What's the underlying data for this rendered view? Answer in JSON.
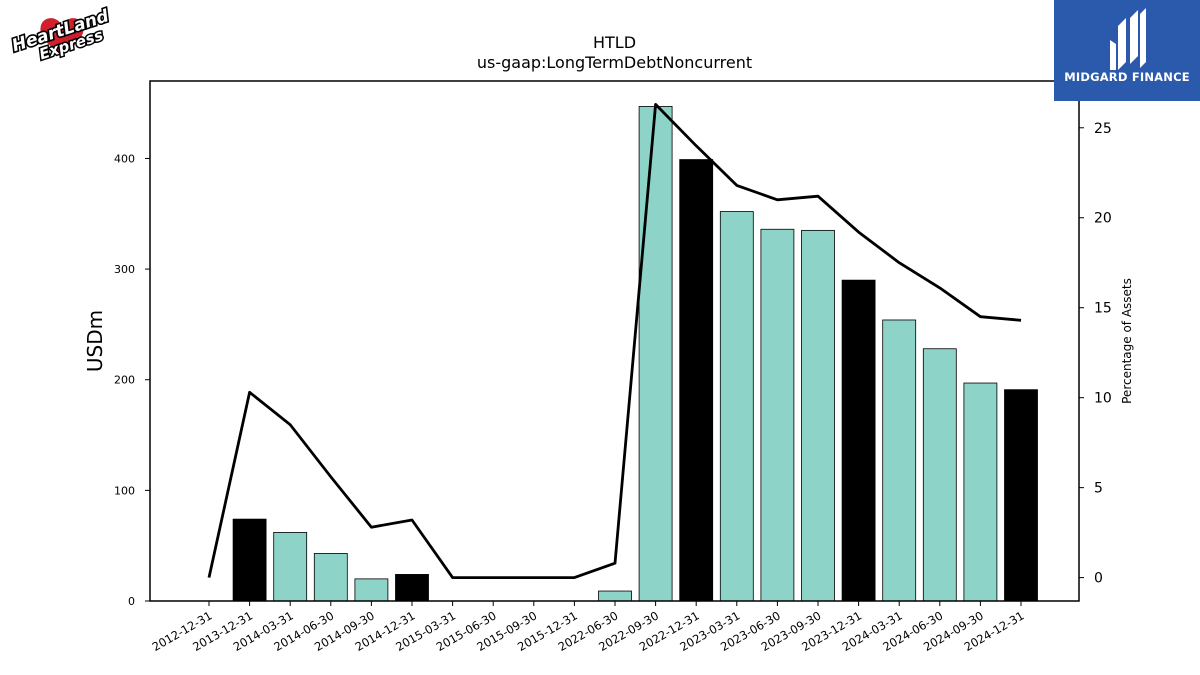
{
  "logos": {
    "left_text_1": "HeartLand",
    "left_text_2": "Express",
    "right_text": "MIDGARD FINANCE"
  },
  "colors": {
    "bar_regular": "#8dd3c7",
    "bar_year_end": "#000000",
    "line": "#000000",
    "logo_right_bg": "#2b59ab",
    "logo_left_heart": "#d0202e"
  },
  "chart_data": {
    "type": "bar",
    "title": "HTLD",
    "subtitle": "us-gaap:LongTermDebtNoncurrent",
    "ylabel": "USDm",
    "y2label": "Percentage of Assets",
    "categories": [
      "2012-12-31",
      "2013-12-31",
      "2014-03-31",
      "2014-06-30",
      "2014-09-30",
      "2014-12-31",
      "2015-03-31",
      "2015-06-30",
      "2015-09-30",
      "2015-12-31",
      "2022-06-30",
      "2022-09-30",
      "2022-12-31",
      "2023-03-31",
      "2023-06-30",
      "2023-09-30",
      "2023-12-31",
      "2024-03-31",
      "2024-06-30",
      "2024-09-30",
      "2024-12-31"
    ],
    "series": [
      {
        "axis": "left",
        "kind": "bar",
        "values": [
          0,
          74,
          62,
          43,
          20,
          24,
          0,
          0,
          0,
          0,
          9,
          447,
          399,
          352,
          336,
          335,
          290,
          254,
          228,
          197,
          191
        ],
        "year_end": [
          true,
          true,
          false,
          false,
          false,
          true,
          false,
          false,
          false,
          true,
          false,
          false,
          true,
          false,
          false,
          false,
          true,
          false,
          false,
          false,
          true
        ]
      },
      {
        "axis": "right",
        "kind": "line",
        "values": [
          0,
          10.3,
          8.5,
          5.6,
          2.8,
          3.2,
          0,
          0,
          0,
          0,
          0.8,
          26.3,
          24.0,
          21.8,
          21.0,
          21.2,
          19.2,
          17.5,
          16.1,
          14.5,
          14.3
        ]
      }
    ],
    "ylim": [
      0,
      470
    ],
    "y2lim": [
      -1.3,
      27.6
    ],
    "yticks": [
      0,
      100,
      200,
      300,
      400
    ],
    "y2ticks": [
      0,
      5,
      10,
      15,
      20,
      25
    ],
    "grid": false,
    "legend": "none"
  }
}
